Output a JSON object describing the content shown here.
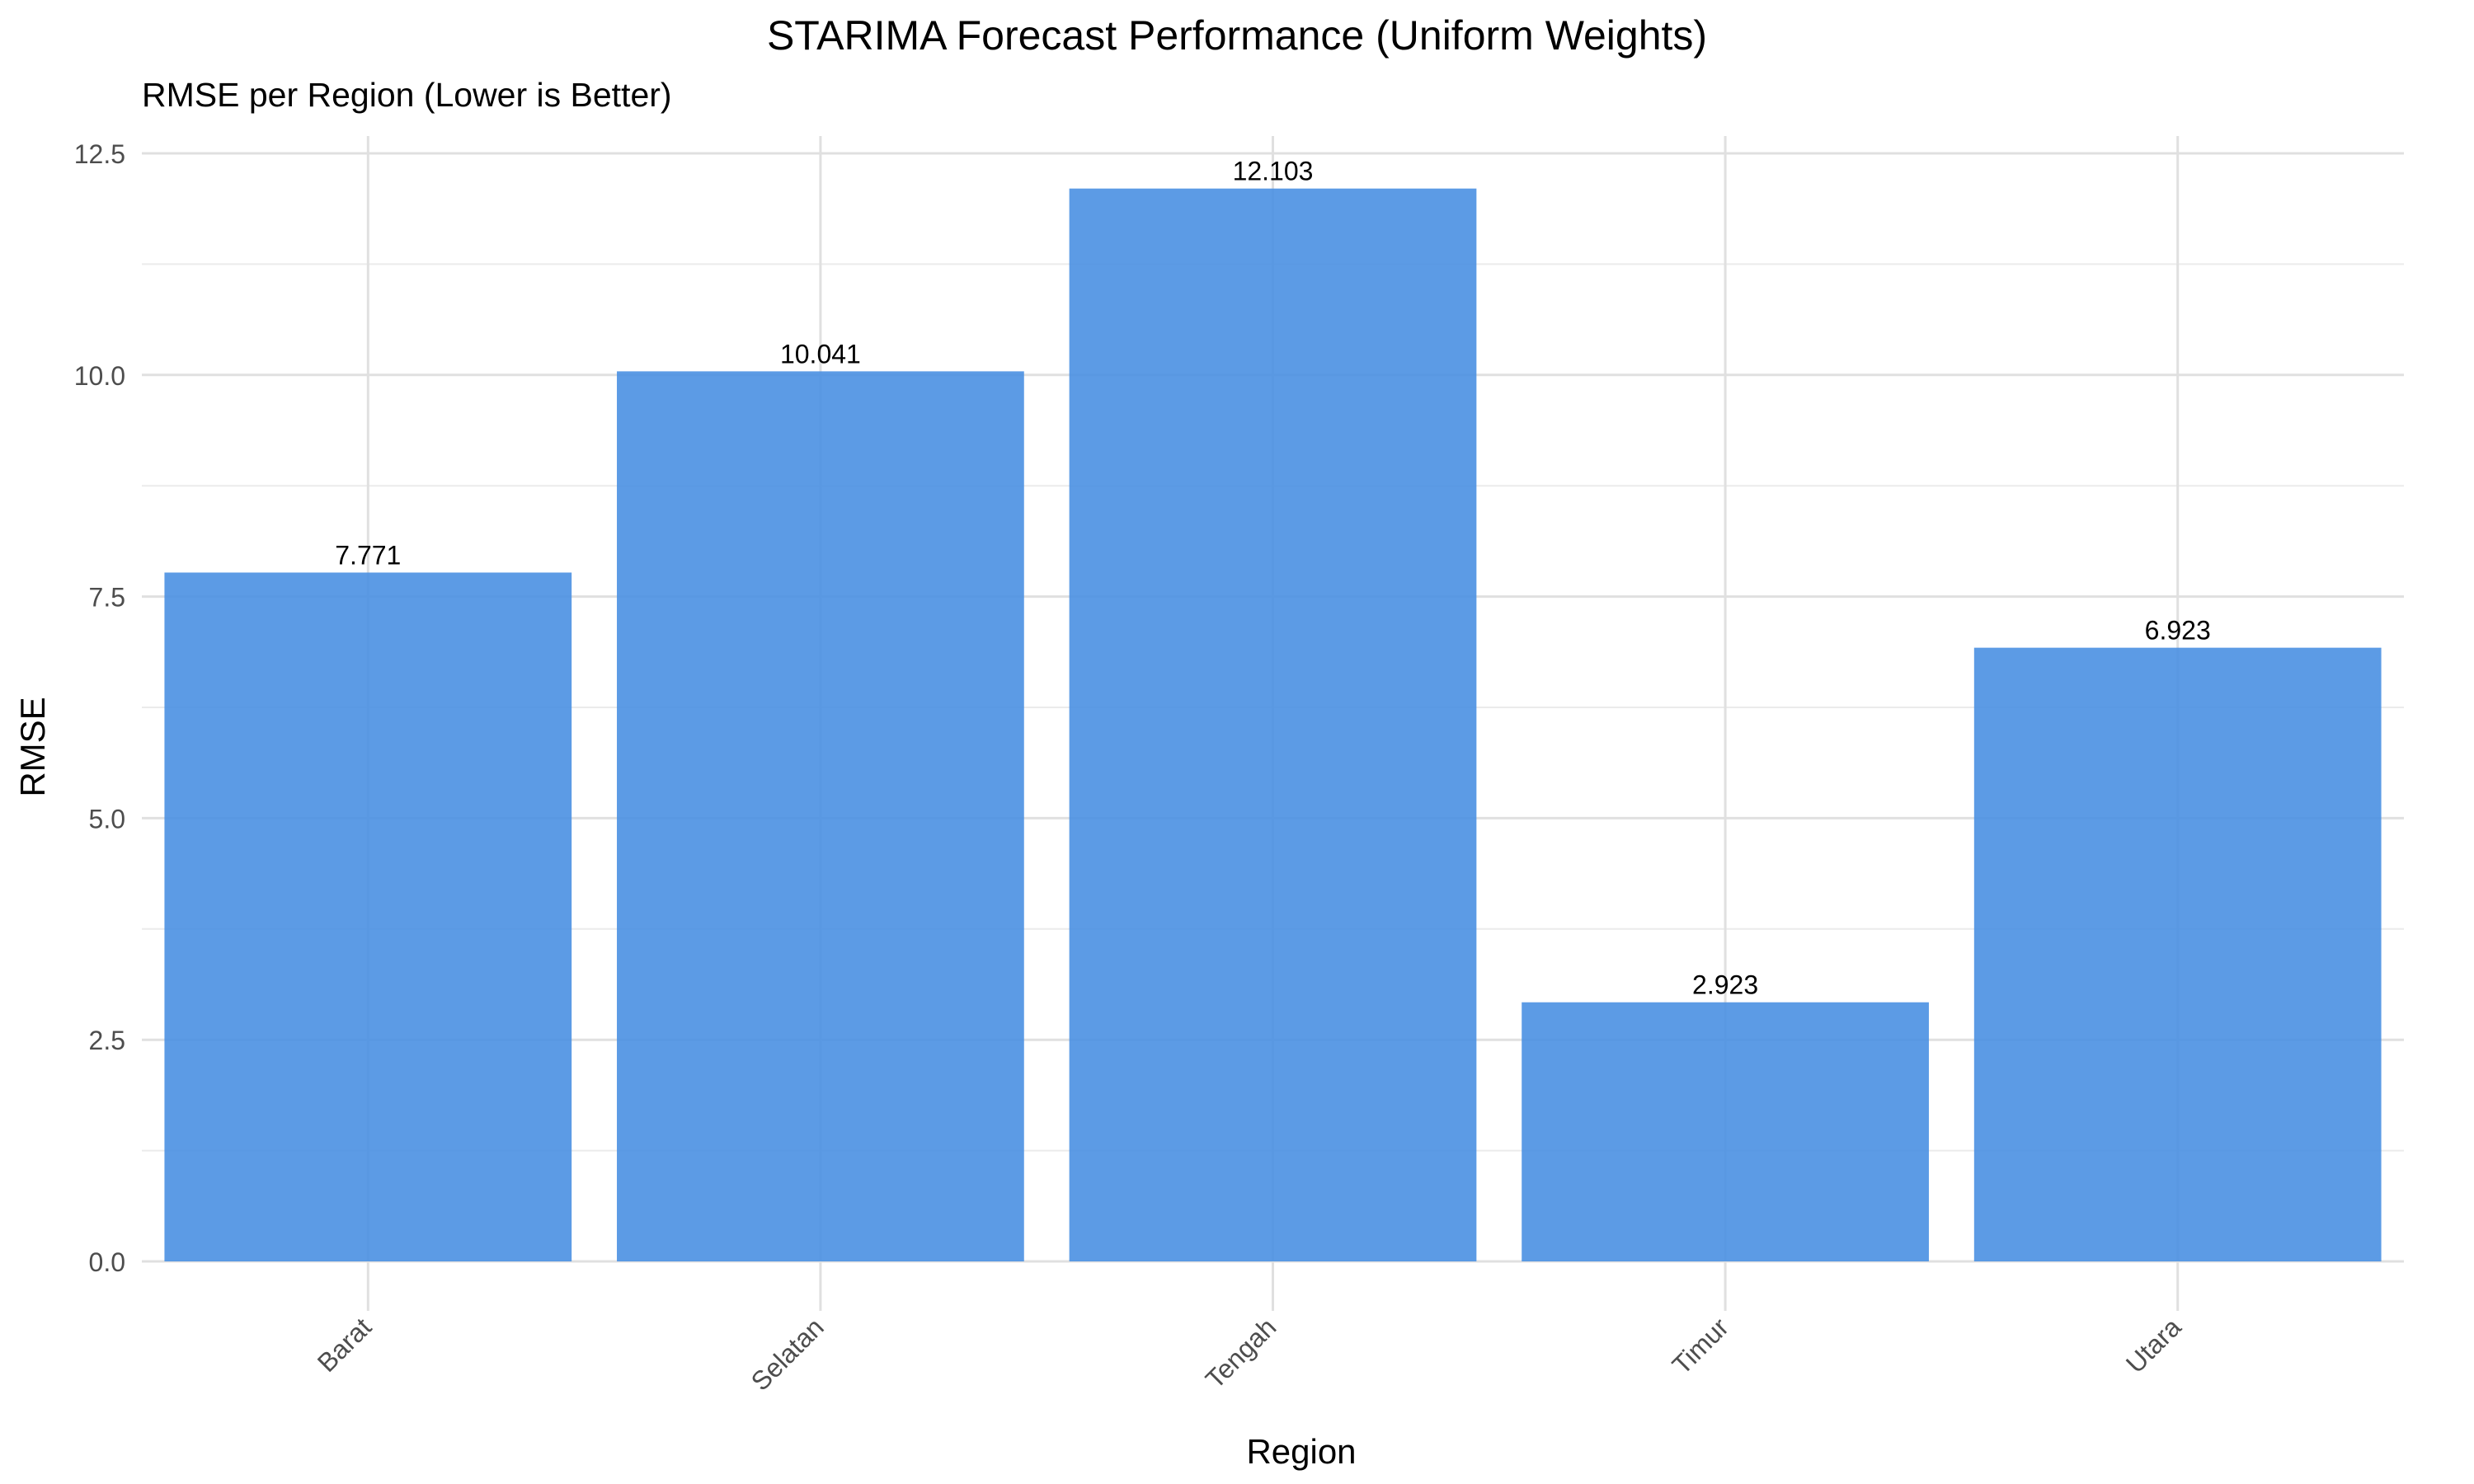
{
  "chart_data": {
    "type": "bar",
    "title": "STARIMA Forecast Performance (Uniform Weights)",
    "subtitle": "RMSE per Region (Lower is Better)",
    "xlabel": "Region",
    "ylabel": "RMSE",
    "categories": [
      "Barat",
      "Selatan",
      "Tengah",
      "Timur",
      "Utara"
    ],
    "values": [
      7.771,
      10.041,
      12.103,
      2.923,
      6.923
    ],
    "value_labels": [
      "7.771",
      "10.041",
      "12.103",
      "2.923",
      "6.923"
    ],
    "ylim": [
      0,
      12.5
    ],
    "yticks": [
      0.0,
      2.5,
      5.0,
      7.5,
      10.0,
      12.5
    ],
    "ytick_labels": [
      "0.0",
      "2.5",
      "5.0",
      "7.5",
      "10.0",
      "12.5"
    ],
    "grid": true,
    "legend": "none",
    "bar_color": "#4a90e2",
    "tick_label_rotation": "45deg"
  }
}
